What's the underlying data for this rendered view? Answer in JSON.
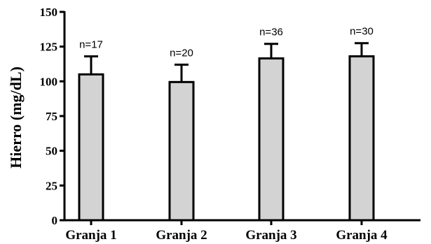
{
  "chart_data": {
    "type": "bar",
    "categories": [
      "Granja 1",
      "Granja 2",
      "Granja 3",
      "Granja 4"
    ],
    "values": [
      105,
      99.5,
      116.5,
      118
    ],
    "error_upper": [
      13,
      12.5,
      10.5,
      9.5
    ],
    "annotations": [
      "n=17",
      "n=20",
      "n=36",
      "n=30"
    ],
    "title": "",
    "xlabel": "",
    "ylabel": "Hierro (mg/dL)",
    "ylim": [
      0,
      150
    ],
    "yticks": [
      0,
      25,
      50,
      75,
      100,
      125,
      150
    ],
    "ytick_labels": [
      "0",
      "25",
      "50",
      "75",
      "100",
      "125",
      "150"
    ],
    "bar_fill": "#d3d3d3",
    "bar_edge": "#000000",
    "grid": false
  }
}
